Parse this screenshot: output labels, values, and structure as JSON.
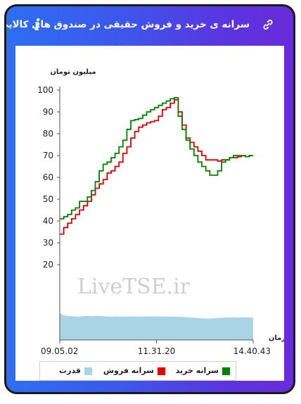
{
  "header": {
    "title": "سرانه ی خرید و فروش حقیقی در صندوق های کالایی",
    "info_icon_glyph": "i",
    "colors": {
      "gradient_start": "#2d6ff2",
      "gradient_end": "#6a2bd8",
      "text": "#ffffff"
    }
  },
  "chart_data": {
    "type": "line",
    "ylabel": "میلیون تومان",
    "xlabel": "زمان",
    "y_ticks": [
      20,
      30,
      40,
      50,
      60,
      70,
      80,
      90,
      100
    ],
    "x_ticks": [
      "09.05.02",
      "11.31.20",
      "14.40.43"
    ],
    "ylim": [
      0,
      100
    ],
    "grid": false,
    "watermark": "LiveTSE.ir",
    "legend_position": "bottom",
    "series": [
      {
        "name": "سرانه خرید",
        "color": "#008000",
        "values": [
          41,
          42,
          43,
          45,
          46,
          49,
          49,
          51,
          54,
          58,
          63,
          66,
          67,
          69,
          71,
          74,
          77,
          82,
          86,
          86.5,
          87,
          88.5,
          90,
          91,
          92,
          93,
          94,
          95,
          96,
          96.5,
          88,
          82,
          77,
          73,
          70,
          67,
          65,
          63,
          61,
          61,
          63,
          67,
          68,
          69,
          70,
          70,
          70,
          69.5,
          70,
          70
        ]
      },
      {
        "name": "سرانه فروش",
        "color": "#e00000",
        "values": [
          34,
          37,
          39,
          41,
          43,
          45,
          47,
          49,
          52,
          55,
          57,
          59,
          62,
          63,
          65,
          67,
          71,
          74,
          78,
          81,
          83,
          84,
          85,
          85.5,
          86,
          88,
          91,
          92,
          94,
          95.5,
          90,
          84,
          78,
          76,
          74,
          72,
          70,
          68,
          68,
          68,
          67.5,
          68,
          68,
          69,
          69,
          69.5,
          70,
          69.5,
          70,
          70
        ]
      },
      {
        "name": "قدرت",
        "color": "#a8d4e6",
        "values": [
          1.0,
          0.92,
          0.9,
          0.89,
          0.88,
          0.87,
          0.89,
          0.9,
          0.89,
          0.9,
          0.9,
          0.89,
          0.88,
          0.87,
          0.88,
          0.87,
          0.88,
          0.87,
          0.88,
          0.88,
          0.87,
          0.87,
          0.88,
          0.88,
          0.88,
          0.88,
          0.88,
          0.87,
          0.87,
          0.87,
          0.86,
          0.86,
          0.85,
          0.84,
          0.83,
          0.82,
          0.81,
          0.8,
          0.8,
          0.81,
          0.82,
          0.83,
          0.84,
          0.84,
          0.85,
          0.84,
          0.84,
          0.85,
          0.84,
          0.84
        ]
      }
    ]
  }
}
